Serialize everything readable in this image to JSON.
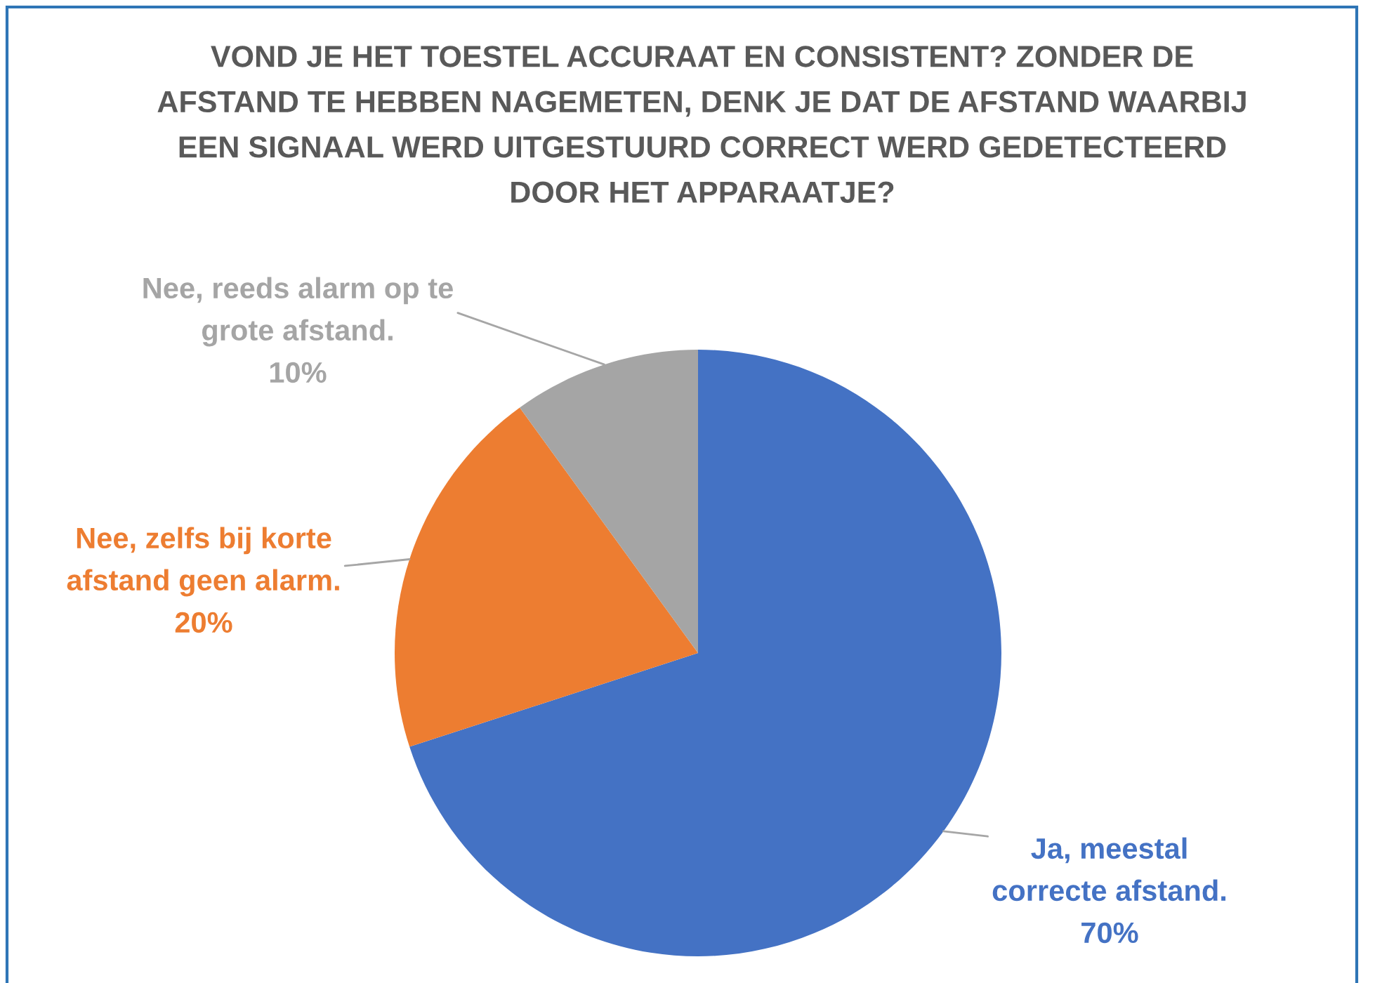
{
  "chart_data": {
    "type": "pie",
    "title": "VOND JE HET TOESTEL ACCURAAT EN CONSISTENT? ZONDER DE AFSTAND TE HEBBEN NAGEMETEN, DENK JE DAT DE AFSTAND WAARBIJ EEN SIGNAAL WERD UITGESTUURD CORRECT WERD GEDETECTEERD DOOR HET APPARAATJE?",
    "categories": [
      "Ja, meestal correcte afstand.",
      "Nee, zelfs bij korte afstand geen alarm.",
      "Nee, reeds alarm op te grote afstand."
    ],
    "values": [
      70,
      20,
      10
    ],
    "colors": [
      "#4472c4",
      "#ed7d31",
      "#a5a5a5"
    ],
    "value_labels": [
      "70%",
      "20%",
      "10%"
    ]
  }
}
